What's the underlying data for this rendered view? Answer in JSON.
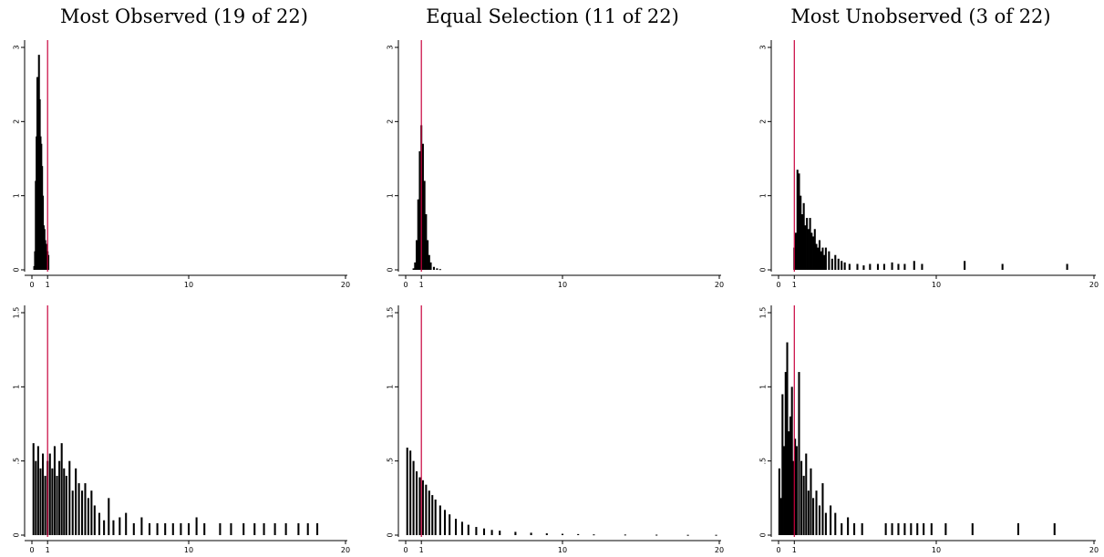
{
  "titles": [
    "Most Observed (19 of 22)",
    "Equal Selection (11 of 22)",
    "Most Unobserved (3 of 22)"
  ],
  "colors": {
    "bars": "#000000",
    "reference_line": "#c8003c",
    "axis": "#000000"
  },
  "chart_data": [
    {
      "type": "bar",
      "panel": "top-left",
      "title": "Most Observed (19 of 22)",
      "xlim": [
        0,
        20
      ],
      "ylim": [
        0,
        3
      ],
      "x_ticks": [
        0,
        1,
        10,
        20
      ],
      "y_ticks": [
        0,
        1,
        2,
        3
      ],
      "x_tick_labels": [
        "0",
        "1",
        "10",
        "20"
      ],
      "y_tick_labels": [
        "0",
        "1",
        "2",
        "3"
      ],
      "reference_line_x": 1,
      "x": [
        0.15,
        0.2,
        0.25,
        0.3,
        0.35,
        0.4,
        0.45,
        0.5,
        0.55,
        0.6,
        0.65,
        0.7,
        0.75,
        0.8,
        0.85,
        0.9,
        0.95,
        1.0,
        1.05
      ],
      "values": [
        0.05,
        0.25,
        1.2,
        1.8,
        2.6,
        2.5,
        2.9,
        2.3,
        1.8,
        1.7,
        1.4,
        1.0,
        0.6,
        0.55,
        0.4,
        0.35,
        0.2,
        0.25,
        0.2
      ]
    },
    {
      "type": "bar",
      "panel": "top-middle",
      "title": "Equal Selection (11 of 22)",
      "xlim": [
        0,
        20
      ],
      "ylim": [
        0,
        3
      ],
      "x_ticks": [
        0,
        1,
        10,
        20
      ],
      "y_ticks": [
        0,
        1,
        2,
        3
      ],
      "x_tick_labels": [
        "0",
        "1",
        "10",
        "20"
      ],
      "y_tick_labels": [
        "0",
        "1",
        "2",
        "3"
      ],
      "reference_line_x": 1,
      "x": [
        0.5,
        0.6,
        0.7,
        0.8,
        0.9,
        1.0,
        1.1,
        1.2,
        1.3,
        1.4,
        1.5,
        1.6,
        1.8,
        2.0,
        2.2
      ],
      "values": [
        0.02,
        0.1,
        0.4,
        0.95,
        1.6,
        1.95,
        1.7,
        1.2,
        0.75,
        0.4,
        0.2,
        0.1,
        0.04,
        0.02,
        0.01
      ]
    },
    {
      "type": "bar",
      "panel": "top-right",
      "title": "Most Unobserved (3 of 22)",
      "xlim": [
        0,
        20
      ],
      "ylim": [
        0,
        3
      ],
      "x_ticks": [
        0,
        1,
        10,
        20
      ],
      "y_ticks": [
        0,
        1,
        2,
        3
      ],
      "x_tick_labels": [
        "0",
        "1",
        "10",
        "20"
      ],
      "y_tick_labels": [
        "0",
        "1",
        "2",
        "3"
      ],
      "reference_line_x": 1,
      "x": [
        1.0,
        1.1,
        1.2,
        1.3,
        1.4,
        1.5,
        1.6,
        1.7,
        1.8,
        1.9,
        2.0,
        2.1,
        2.2,
        2.3,
        2.4,
        2.5,
        2.6,
        2.7,
        2.8,
        2.9,
        3.0,
        3.2,
        3.4,
        3.6,
        3.8,
        4.0,
        4.2,
        4.5,
        5.0,
        5.4,
        5.8,
        6.3,
        6.7,
        7.2,
        7.6,
        8.0,
        8.6,
        9.1,
        11.8,
        14.2,
        18.3
      ],
      "values": [
        0.3,
        0.5,
        1.35,
        1.3,
        1.0,
        0.75,
        0.9,
        0.6,
        0.7,
        0.55,
        0.7,
        0.5,
        0.45,
        0.55,
        0.35,
        0.3,
        0.4,
        0.25,
        0.3,
        0.2,
        0.3,
        0.25,
        0.15,
        0.2,
        0.15,
        0.12,
        0.1,
        0.08,
        0.08,
        0.06,
        0.08,
        0.08,
        0.08,
        0.1,
        0.08,
        0.08,
        0.12,
        0.08,
        0.12,
        0.08,
        0.08
      ]
    },
    {
      "type": "bar",
      "panel": "bottom-left",
      "xlim": [
        0,
        20
      ],
      "ylim": [
        0,
        1.5
      ],
      "x_ticks": [
        0,
        1,
        10,
        20
      ],
      "y_ticks": [
        0,
        0.5,
        1,
        1.5
      ],
      "x_tick_labels": [
        "0",
        "1",
        "10",
        "20"
      ],
      "y_tick_labels": [
        "0",
        ".5",
        "1",
        "1.5"
      ],
      "reference_line_x": 1,
      "x": [
        0.1,
        0.25,
        0.4,
        0.55,
        0.7,
        0.85,
        1.0,
        1.15,
        1.3,
        1.45,
        1.6,
        1.75,
        1.9,
        2.05,
        2.2,
        2.4,
        2.6,
        2.8,
        3.0,
        3.2,
        3.4,
        3.6,
        3.8,
        4.0,
        4.3,
        4.6,
        4.9,
        5.2,
        5.6,
        6.0,
        6.5,
        7.0,
        7.5,
        8.0,
        8.5,
        9.0,
        9.5,
        10.0,
        10.5,
        11.0,
        12.0,
        12.7,
        13.5,
        14.2,
        14.8,
        15.5,
        16.2,
        17.0,
        17.6,
        18.2
      ],
      "values": [
        0.62,
        0.5,
        0.6,
        0.45,
        0.55,
        0.4,
        0.5,
        0.55,
        0.45,
        0.6,
        0.4,
        0.5,
        0.62,
        0.45,
        0.4,
        0.5,
        0.3,
        0.45,
        0.35,
        0.3,
        0.35,
        0.25,
        0.3,
        0.2,
        0.15,
        0.1,
        0.25,
        0.1,
        0.12,
        0.15,
        0.08,
        0.12,
        0.08,
        0.08,
        0.08,
        0.08,
        0.08,
        0.08,
        0.12,
        0.08,
        0.08,
        0.08,
        0.08,
        0.08,
        0.08,
        0.08,
        0.08,
        0.08,
        0.08,
        0.08
      ]
    },
    {
      "type": "bar",
      "panel": "bottom-middle",
      "xlim": [
        0,
        20
      ],
      "ylim": [
        0,
        1.5
      ],
      "x_ticks": [
        0,
        1,
        10,
        20
      ],
      "y_ticks": [
        0,
        0.5,
        1,
        1.5
      ],
      "x_tick_labels": [
        "0",
        "1",
        "10",
        "20"
      ],
      "y_tick_labels": [
        "0",
        ".5",
        "1",
        "1.5"
      ],
      "reference_line_x": 1,
      "x": [
        0.1,
        0.3,
        0.5,
        0.7,
        0.9,
        1.1,
        1.3,
        1.5,
        1.7,
        1.9,
        2.2,
        2.5,
        2.8,
        3.2,
        3.6,
        4.0,
        4.5,
        5.0,
        5.5,
        6.0,
        7.0,
        8.0,
        9.0,
        10.0,
        11.0,
        12.0,
        14.0,
        16.0,
        18.0,
        19.8
      ],
      "values": [
        0.59,
        0.57,
        0.5,
        0.43,
        0.39,
        0.37,
        0.34,
        0.3,
        0.27,
        0.24,
        0.2,
        0.17,
        0.14,
        0.11,
        0.09,
        0.07,
        0.055,
        0.045,
        0.035,
        0.03,
        0.022,
        0.016,
        0.012,
        0.009,
        0.007,
        0.005,
        0.004,
        0.003,
        0.002,
        0.002
      ]
    },
    {
      "type": "bar",
      "panel": "bottom-right",
      "xlim": [
        0,
        20
      ],
      "ylim": [
        0,
        1.5
      ],
      "x_ticks": [
        0,
        1,
        10,
        20
      ],
      "y_ticks": [
        0,
        0.5,
        1,
        1.5
      ],
      "x_tick_labels": [
        "0",
        "1",
        "10",
        "20"
      ],
      "y_tick_labels": [
        "0",
        ".5",
        "1",
        "1.5"
      ],
      "reference_line_x": 1,
      "x": [
        0.05,
        0.15,
        0.25,
        0.35,
        0.45,
        0.55,
        0.65,
        0.75,
        0.85,
        0.95,
        1.05,
        1.15,
        1.3,
        1.45,
        1.6,
        1.75,
        1.9,
        2.05,
        2.2,
        2.4,
        2.6,
        2.8,
        3.0,
        3.3,
        3.6,
        4.0,
        4.4,
        4.8,
        5.3,
        6.8,
        7.2,
        7.6,
        8.0,
        8.4,
        8.8,
        9.2,
        9.7,
        10.6,
        12.3,
        15.2,
        17.5
      ],
      "values": [
        0.45,
        0.25,
        0.95,
        0.6,
        1.1,
        1.3,
        0.7,
        0.8,
        1.0,
        0.5,
        0.65,
        0.6,
        1.1,
        0.5,
        0.4,
        0.55,
        0.3,
        0.45,
        0.25,
        0.3,
        0.2,
        0.35,
        0.15,
        0.2,
        0.15,
        0.08,
        0.12,
        0.08,
        0.08,
        0.08,
        0.08,
        0.08,
        0.08,
        0.08,
        0.08,
        0.08,
        0.08,
        0.08,
        0.08,
        0.08,
        0.08
      ]
    }
  ]
}
